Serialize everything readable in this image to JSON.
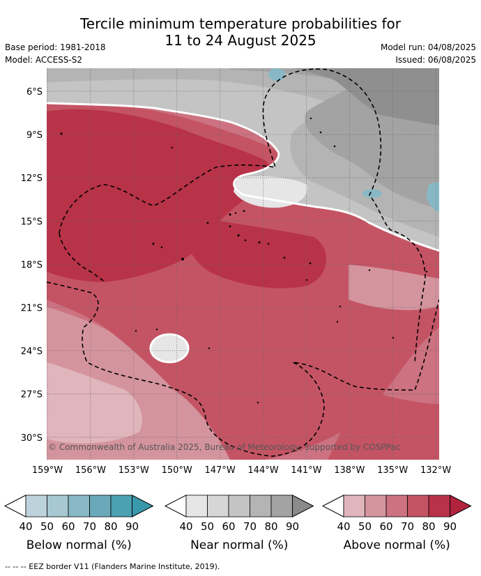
{
  "title_line1": "Tercile minimum temperature probabilities for",
  "title_line2": "11 to 24 August 2025",
  "base_period": "Base period: 1981-2018",
  "model": "Model: ACCESS-S2",
  "model_run": "Model run: 04/08/2025",
  "issued": "Issued: 06/08/2025",
  "lat_labels": [
    "6°S",
    "9°S",
    "12°S",
    "15°S",
    "18°S",
    "21°S",
    "24°S",
    "27°S",
    "30°S"
  ],
  "lon_labels": [
    "159°W",
    "156°W",
    "153°W",
    "150°W",
    "147°W",
    "144°W",
    "141°W",
    "138°W",
    "135°W",
    "132°W"
  ],
  "copyright": "© Commonwealth of Australia 2025, Bureau of Meteorology, supported by COSPPac",
  "legends": [
    {
      "title": "Below normal (%)",
      "ticks": [
        "40",
        "50",
        "60",
        "70",
        "80",
        "90"
      ],
      "colors": [
        "#bdd3dc",
        "#a7c8d1",
        "#88b8c5",
        "#6aa9ba",
        "#4ba0b1"
      ]
    },
    {
      "title": "Near normal (%)",
      "ticks": [
        "40",
        "50",
        "60",
        "70",
        "80",
        "90"
      ],
      "colors": [
        "#e6e6e6",
        "#d6d6d6",
        "#c4c4c4",
        "#b4b4b4",
        "#a3a3a3"
      ]
    },
    {
      "title": "Above normal (%)",
      "ticks": [
        "40",
        "50",
        "60",
        "70",
        "80",
        "90"
      ],
      "colors": [
        "#e0b5bc",
        "#d4949e",
        "#cc7280",
        "#c45464",
        "#b83248"
      ]
    }
  ],
  "footnote": "--  --  -- EEZ border V11 (Flanders Marine Institute, 2019)."
}
